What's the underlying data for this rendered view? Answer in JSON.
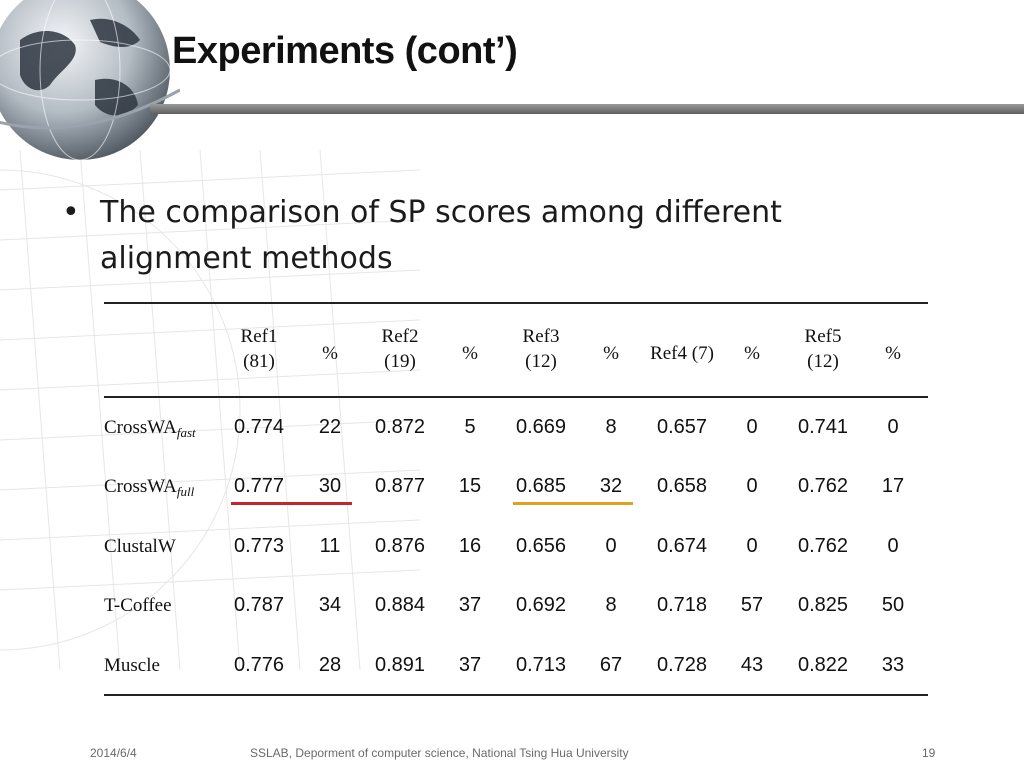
{
  "slide": {
    "title": "Experiments (cont’)",
    "bullet": {
      "symbol": "•",
      "text": "The comparison of SP scores among different alignment methods"
    },
    "table": {
      "headers": [
        {
          "line1": "Ref1",
          "line2": "(81)"
        },
        {
          "line1": "%",
          "line2": ""
        },
        {
          "line1": "Ref2",
          "line2": "(19)"
        },
        {
          "line1": "%",
          "line2": ""
        },
        {
          "line1": "Ref3",
          "line2": "(12)"
        },
        {
          "line1": "%",
          "line2": ""
        },
        {
          "line1": "Ref4 (7)",
          "line2": ""
        },
        {
          "line1": "%",
          "line2": ""
        },
        {
          "line1": "Ref5",
          "line2": "(12)"
        },
        {
          "line1": "%",
          "line2": ""
        }
      ],
      "rows": [
        {
          "name": "CrossWA",
          "sub": "fast",
          "values": [
            "0.774",
            "22",
            "0.872",
            "5",
            "0.669",
            "8",
            "0.657",
            "0",
            "0.741",
            "0"
          ]
        },
        {
          "name": "CrossWA",
          "sub": "full",
          "values": [
            "0.777",
            "30",
            "0.877",
            "15",
            "0.685",
            "32",
            "0.658",
            "0",
            "0.762",
            "17"
          ]
        },
        {
          "name": "ClustalW",
          "sub": "",
          "values": [
            "0.773",
            "11",
            "0.876",
            "16",
            "0.656",
            "0",
            "0.674",
            "0",
            "0.762",
            "0"
          ]
        },
        {
          "name": "T-Coffee",
          "sub": "",
          "values": [
            "0.787",
            "34",
            "0.884",
            "37",
            "0.692",
            "8",
            "0.718",
            "57",
            "0.825",
            "50"
          ]
        },
        {
          "name": "Muscle",
          "sub": "",
          "values": [
            "0.776",
            "28",
            "0.891",
            "37",
            "0.713",
            "67",
            "0.728",
            "43",
            "0.822",
            "33"
          ]
        }
      ],
      "highlights": [
        {
          "row": 1,
          "from_col": 0,
          "to_col": 1,
          "color": "#c0282d"
        },
        {
          "row": 1,
          "from_col": 4,
          "to_col": 5,
          "color": "#e0a020"
        }
      ]
    },
    "footer": {
      "date": "2014/6/4",
      "source": "SSLAB, Deporment of computer science,  National Tsing Hua University",
      "page": "19"
    }
  }
}
